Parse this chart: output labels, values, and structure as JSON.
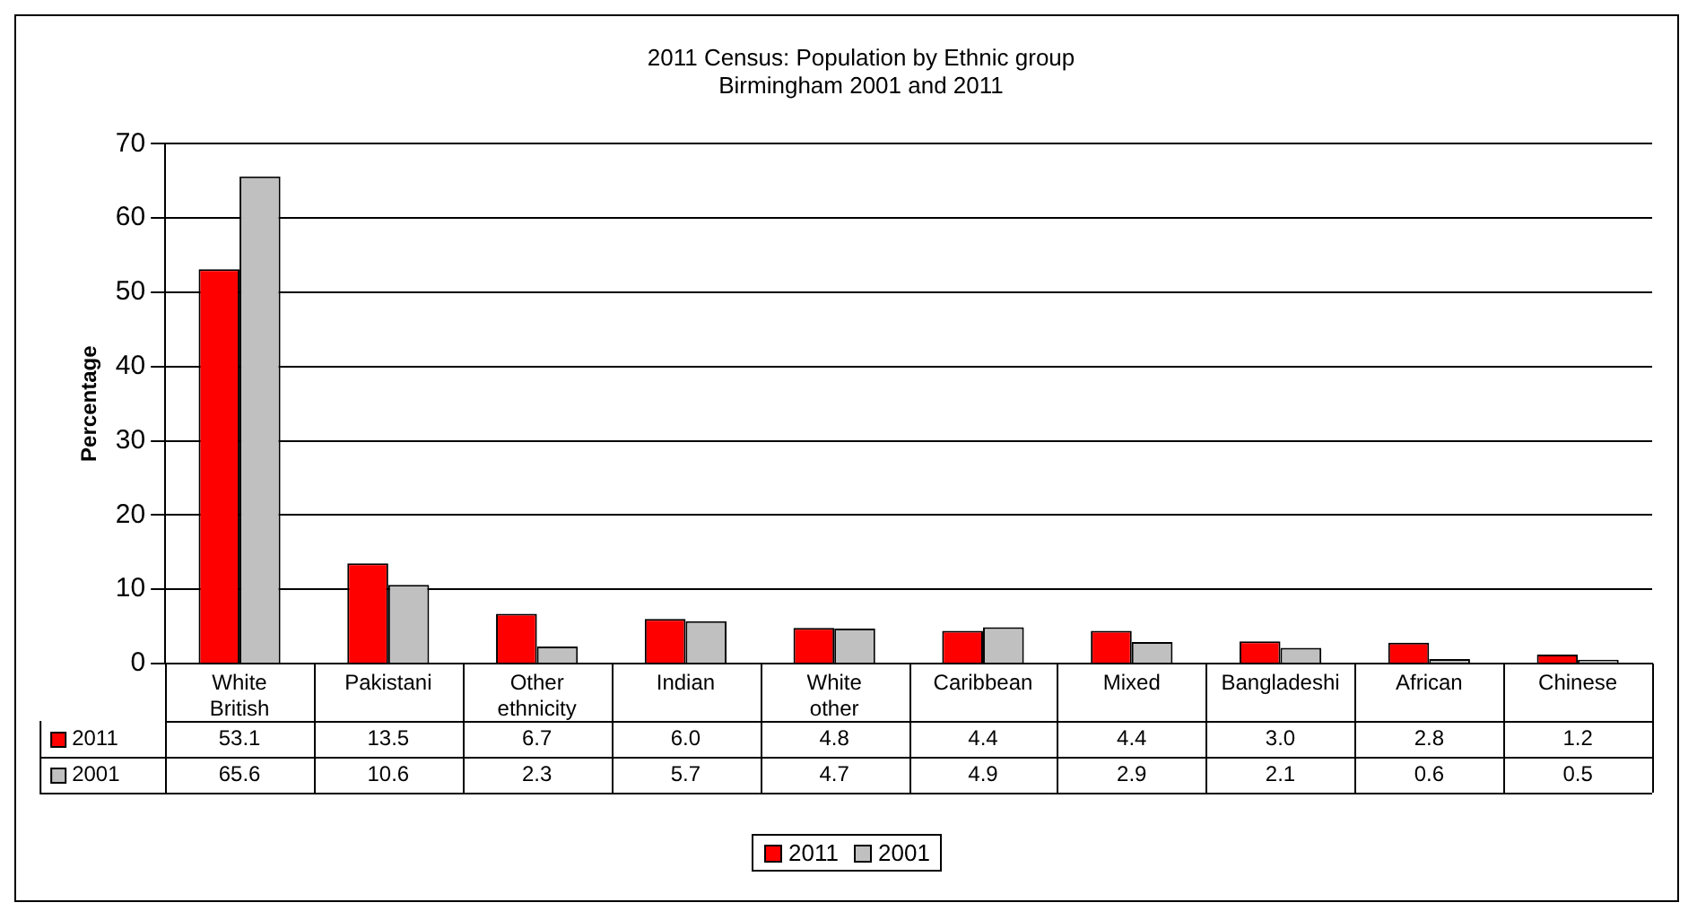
{
  "chart_data": {
    "type": "bar",
    "title": "2011 Census: Population by Ethnic group",
    "subtitle": "Birmingham 2001 and 2011",
    "ylabel": "Percentage",
    "categories": [
      "White British",
      "Pakistani",
      "Other ethnicity",
      "Indian",
      "White other",
      "Caribbean",
      "Mixed",
      "Bangladeshi",
      "African",
      "Chinese"
    ],
    "series": [
      {
        "name": "2011",
        "color": "#ff0000",
        "values": [
          53.1,
          13.5,
          6.7,
          6.0,
          4.8,
          4.4,
          4.4,
          3.0,
          2.8,
          1.2
        ],
        "value_labels": [
          "53.1",
          "13.5",
          "6.7",
          "6.0",
          "4.8",
          "4.4",
          "4.4",
          "3.0",
          "2.8",
          "1.2"
        ]
      },
      {
        "name": "2001",
        "color": "#c0c0c0",
        "values": [
          65.6,
          10.6,
          2.3,
          5.7,
          4.7,
          4.9,
          2.9,
          2.1,
          0.6,
          0.5
        ],
        "value_labels": [
          "65.6",
          "10.6",
          "2.3",
          "5.7",
          "4.7",
          "4.9",
          "2.9",
          "2.1",
          "0.6",
          "0.5"
        ]
      }
    ],
    "ylim": [
      0,
      70
    ],
    "yticks": [
      0,
      10,
      20,
      30,
      40,
      50,
      60,
      70
    ],
    "grid": "y",
    "legend": "bottom"
  }
}
